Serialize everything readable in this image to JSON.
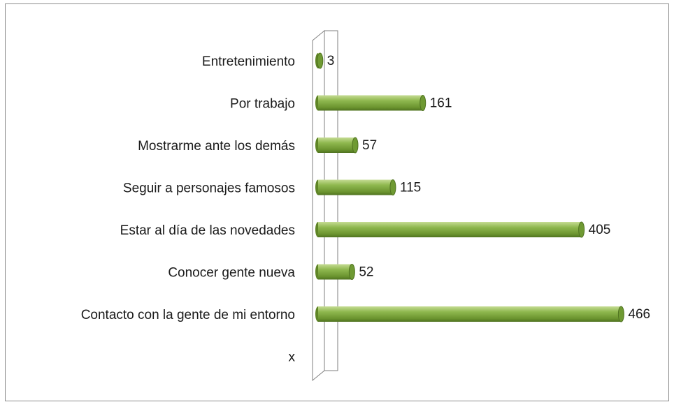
{
  "chart_data": {
    "type": "bar",
    "orientation": "horizontal",
    "categories": [
      "Entretenimiento",
      "Por trabajo",
      "Mostrarme ante los demás",
      "Seguir a personajes famosos",
      "Estar al día de las novedades",
      "Conocer gente nueva",
      "Contacto con la gente de mi entorno",
      "x"
    ],
    "values": [
      3,
      161,
      57,
      115,
      405,
      52,
      466,
      null
    ],
    "color": "#77a33a"
  }
}
